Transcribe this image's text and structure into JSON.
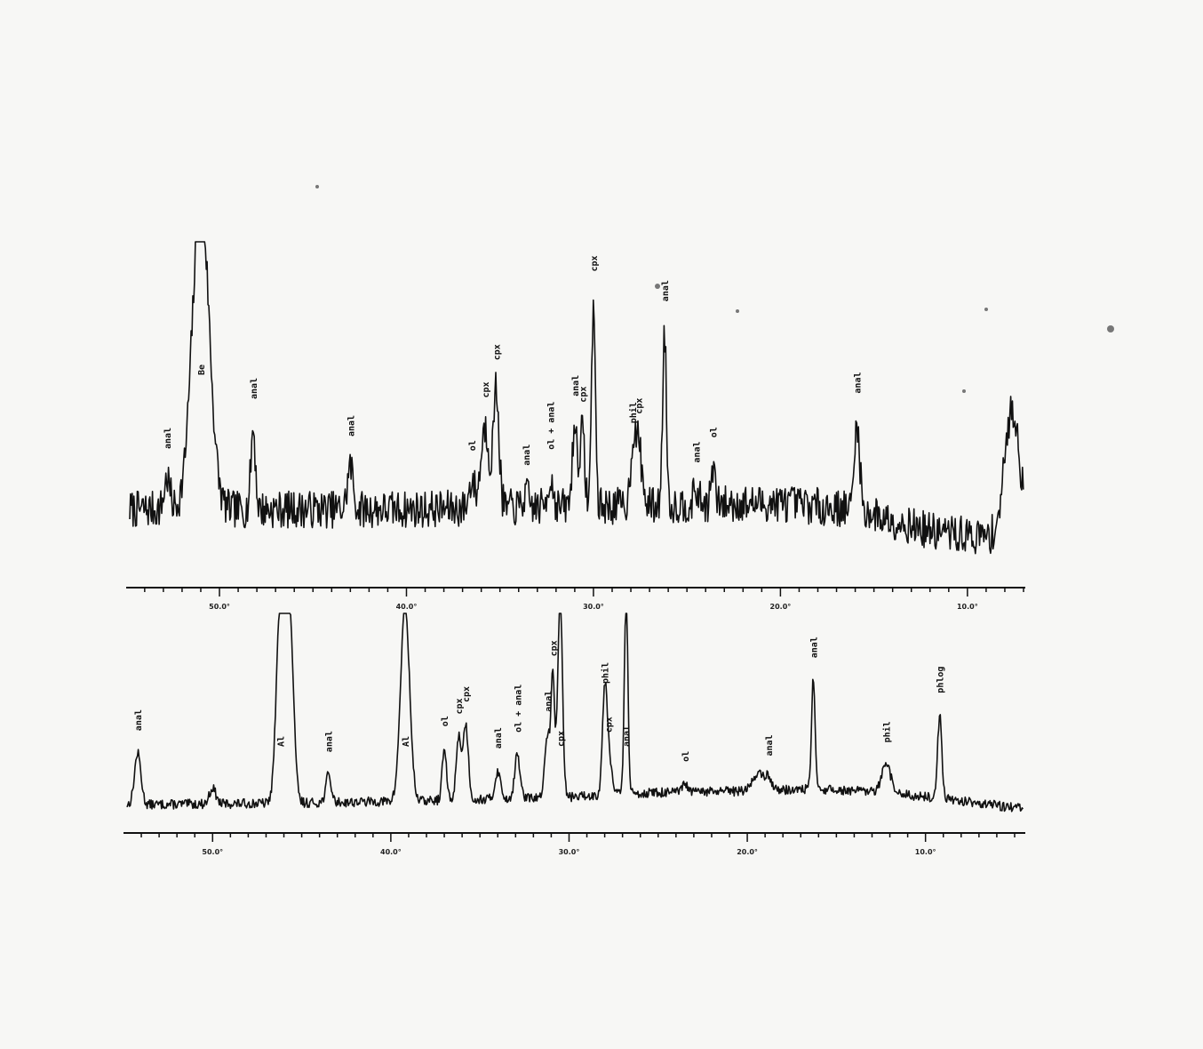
{
  "chart_data": [
    {
      "type": "line",
      "title": "",
      "xlabel": "",
      "ylabel": "",
      "x_unit": "°2θ",
      "xlim": [
        54.8,
        7.0
      ],
      "x_reversed": true,
      "grid": false,
      "tick_labels": [
        "50.0°",
        "40.0°",
        "30.0°",
        "20.0°",
        "10.0°"
      ],
      "tick_values": [
        50,
        40,
        30,
        20,
        10
      ],
      "minor_tick_step": 1,
      "ylim": [
        0,
        100
      ],
      "baseline": [
        [
          54.8,
          14
        ],
        [
          40,
          14
        ],
        [
          30,
          15
        ],
        [
          20,
          16
        ],
        [
          16,
          14
        ],
        [
          12,
          7
        ],
        [
          9,
          5
        ],
        [
          7.9,
          6
        ]
      ],
      "noise": 6,
      "seed": 7,
      "peaks": [
        {
          "x": 51.0,
          "height": 100,
          "width": 0.45,
          "label": "Be"
        },
        {
          "x": 48.2,
          "height": 26,
          "width": 0.12,
          "label": "anal"
        },
        {
          "x": 52.8,
          "height": 10,
          "width": 0.15,
          "label": "anal"
        },
        {
          "x": 43.0,
          "height": 14,
          "width": 0.15,
          "label": "anal"
        },
        {
          "x": 36.5,
          "height": 9,
          "width": 0.15,
          "label": "ol"
        },
        {
          "x": 35.8,
          "height": 26,
          "width": 0.22,
          "label": "cpx"
        },
        {
          "x": 35.2,
          "height": 38,
          "width": 0.15,
          "label": "cpx"
        },
        {
          "x": 33.6,
          "height": 4,
          "width": 0.15,
          "label": "anal"
        },
        {
          "x": 32.3,
          "height": 9,
          "width": 0.15,
          "label": "ol + anal"
        },
        {
          "x": 31.0,
          "height": 26,
          "width": 0.13,
          "label": "anal"
        },
        {
          "x": 30.6,
          "height": 24,
          "width": 0.13,
          "label": "cpx"
        },
        {
          "x": 30.0,
          "height": 66,
          "width": 0.1,
          "label": "cpx"
        },
        {
          "x": 27.9,
          "height": 17,
          "width": 0.13,
          "label": "phil"
        },
        {
          "x": 27.6,
          "height": 20,
          "width": 0.18,
          "label": "cpx"
        },
        {
          "x": 26.2,
          "height": 56,
          "width": 0.1,
          "label": "anal"
        },
        {
          "x": 24.5,
          "height": 4,
          "width": 0.15,
          "label": "anal"
        },
        {
          "x": 23.6,
          "height": 12,
          "width": 0.1,
          "label": "ol"
        },
        {
          "x": 15.9,
          "height": 28,
          "width": 0.14,
          "label": "anal"
        },
        {
          "x": 7.6,
          "height": 40,
          "width": 0.4,
          "label": ""
        }
      ]
    },
    {
      "type": "line",
      "title": "",
      "xlabel": "",
      "ylabel": "",
      "x_unit": "°2θ",
      "xlim": [
        54.8,
        4.5
      ],
      "x_reversed": true,
      "grid": false,
      "tick_labels": [
        "50.0°",
        "40.0°",
        "30.0°",
        "20.0°",
        "10.0°"
      ],
      "tick_values": [
        50,
        40,
        30,
        20,
        10
      ],
      "minor_tick_step": 1,
      "ylim": [
        0,
        100
      ],
      "baseline": [
        [
          54.8,
          3
        ],
        [
          45,
          4
        ],
        [
          38,
          5
        ],
        [
          30,
          7
        ],
        [
          26,
          9
        ],
        [
          20,
          10
        ],
        [
          16,
          11
        ],
        [
          12,
          9
        ],
        [
          8,
          5
        ],
        [
          4.5,
          1
        ]
      ],
      "noise": 2.4,
      "seed": 13,
      "peaks": [
        {
          "x": 54.2,
          "height": 26,
          "width": 0.18,
          "label": "anal"
        },
        {
          "x": 50.0,
          "height": 8,
          "width": 0.18,
          "label": ""
        },
        {
          "x": 46.2,
          "height": 100,
          "width": 0.22,
          "label": "Al"
        },
        {
          "x": 45.7,
          "height": 100,
          "width": 0.22,
          "label": ""
        },
        {
          "x": 43.5,
          "height": 14,
          "width": 0.15,
          "label": "anal"
        },
        {
          "x": 39.2,
          "height": 100,
          "width": 0.25,
          "label": "Al"
        },
        {
          "x": 37.0,
          "height": 26,
          "width": 0.12,
          "label": "ol"
        },
        {
          "x": 36.2,
          "height": 32,
          "width": 0.13,
          "label": "cpx"
        },
        {
          "x": 35.8,
          "height": 38,
          "width": 0.15,
          "label": "cpx"
        },
        {
          "x": 34.0,
          "height": 14,
          "width": 0.15,
          "label": "anal"
        },
        {
          "x": 32.9,
          "height": 22,
          "width": 0.15,
          "label": "ol + anal"
        },
        {
          "x": 31.2,
          "height": 32,
          "width": 0.15,
          "label": "anal"
        },
        {
          "x": 30.9,
          "height": 60,
          "width": 0.1,
          "label": "cpx"
        },
        {
          "x": 30.5,
          "height": 100,
          "width": 0.13,
          "label": "cpx"
        },
        {
          "x": 28.0,
          "height": 45,
          "width": 0.13,
          "label": "phil"
        },
        {
          "x": 27.8,
          "height": 20,
          "width": 0.2,
          "label": "cpx"
        },
        {
          "x": 26.8,
          "height": 100,
          "width": 0.1,
          "label": "anal"
        },
        {
          "x": 23.5,
          "height": 4,
          "width": 0.15,
          "label": "ol"
        },
        {
          "x": 19.4,
          "height": 9,
          "width": 0.3,
          "label": ""
        },
        {
          "x": 18.8,
          "height": 6,
          "width": 0.2,
          "label": "anal"
        },
        {
          "x": 16.3,
          "height": 55,
          "width": 0.1,
          "label": "anal"
        },
        {
          "x": 12.2,
          "height": 14,
          "width": 0.25,
          "label": "phil"
        },
        {
          "x": 9.2,
          "height": 42,
          "width": 0.12,
          "label": "phlog"
        }
      ]
    }
  ]
}
